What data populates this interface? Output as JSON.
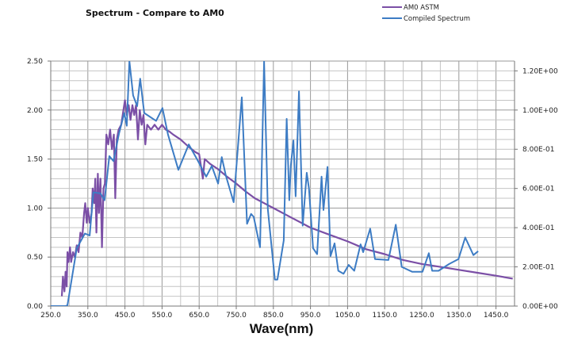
{
  "chart_data": {
    "type": "line",
    "title": "Spectrum - Compare to AM0",
    "xlabel": "Wave(nm)",
    "ylabel": "",
    "xlim": [
      250,
      1500
    ],
    "ylim_left": [
      0,
      2.5
    ],
    "ylim_right": [
      0,
      1.25
    ],
    "x_ticks": [
      "250.0",
      "350.0",
      "450.0",
      "550.0",
      "650.0",
      "750.0",
      "850.0",
      "950.0",
      "1050.0",
      "1150.0",
      "1250.0",
      "1350.0",
      "1450.0"
    ],
    "y_left_ticks": [
      "0.00",
      "0.50",
      "1.00",
      "1.50",
      "2.00",
      "2.50"
    ],
    "y_right_ticks": [
      "0.00E+00",
      "2.00E-01",
      "4.00E-01",
      "6.00E-01",
      "8.00E-01",
      "1.00E+00",
      "1.20E+00"
    ],
    "grid": true,
    "legend_placement": "top-right",
    "series": [
      {
        "name": "AM0 ASTM",
        "axis": "left",
        "color": "#7b4fa6",
        "points": [
          [
            280,
            0.1
          ],
          [
            283,
            0.3
          ],
          [
            287,
            0.15
          ],
          [
            290,
            0.35
          ],
          [
            293,
            0.2
          ],
          [
            295,
            0.55
          ],
          [
            298,
            0.45
          ],
          [
            302,
            0.6
          ],
          [
            305,
            0.45
          ],
          [
            310,
            0.55
          ],
          [
            315,
            0.5
          ],
          [
            320,
            0.62
          ],
          [
            325,
            0.55
          ],
          [
            330,
            0.75
          ],
          [
            335,
            0.7
          ],
          [
            340,
            0.95
          ],
          [
            343,
            1.05
          ],
          [
            347,
            0.85
          ],
          [
            350,
            1.0
          ],
          [
            355,
            0.85
          ],
          [
            360,
            0.95
          ],
          [
            363,
            1.2
          ],
          [
            367,
            1.05
          ],
          [
            370,
            1.3
          ],
          [
            373,
            0.75
          ],
          [
            377,
            1.35
          ],
          [
            380,
            0.95
          ],
          [
            384,
            1.3
          ],
          [
            388,
            0.6
          ],
          [
            392,
            1.2
          ],
          [
            396,
            1.25
          ],
          [
            400,
            1.75
          ],
          [
            405,
            1.65
          ],
          [
            410,
            1.8
          ],
          [
            415,
            1.6
          ],
          [
            420,
            1.75
          ],
          [
            424,
            1.1
          ],
          [
            428,
            1.7
          ],
          [
            433,
            1.8
          ],
          [
            440,
            1.85
          ],
          [
            446,
            2.0
          ],
          [
            450,
            2.1
          ],
          [
            455,
            1.95
          ],
          [
            460,
            2.05
          ],
          [
            465,
            1.9
          ],
          [
            470,
            2.05
          ],
          [
            475,
            1.95
          ],
          [
            480,
            2.05
          ],
          [
            485,
            1.7
          ],
          [
            490,
            2.0
          ],
          [
            495,
            1.85
          ],
          [
            500,
            1.95
          ],
          [
            505,
            1.65
          ],
          [
            510,
            1.85
          ],
          [
            520,
            1.8
          ],
          [
            530,
            1.85
          ],
          [
            540,
            1.8
          ],
          [
            550,
            1.85
          ],
          [
            560,
            1.8
          ],
          [
            570,
            1.78
          ],
          [
            580,
            1.75
          ],
          [
            600,
            1.7
          ],
          [
            620,
            1.63
          ],
          [
            640,
            1.57
          ],
          [
            650,
            1.55
          ],
          [
            660,
            1.3
          ],
          [
            665,
            1.5
          ],
          [
            680,
            1.45
          ],
          [
            700,
            1.4
          ],
          [
            725,
            1.32
          ],
          [
            750,
            1.25
          ],
          [
            775,
            1.17
          ],
          [
            800,
            1.1
          ],
          [
            825,
            1.05
          ],
          [
            850,
            1.0
          ],
          [
            900,
            0.9
          ],
          [
            950,
            0.8
          ],
          [
            1000,
            0.73
          ],
          [
            1050,
            0.66
          ],
          [
            1100,
            0.58
          ],
          [
            1150,
            0.53
          ],
          [
            1200,
            0.47
          ],
          [
            1250,
            0.43
          ],
          [
            1300,
            0.4
          ],
          [
            1350,
            0.37
          ],
          [
            1400,
            0.34
          ],
          [
            1450,
            0.31
          ],
          [
            1495,
            0.28
          ]
        ]
      },
      {
        "name": "Compiled Spectrum",
        "axis": "right",
        "color": "#3d7cc4",
        "points": [
          [
            250,
            0
          ],
          [
            290,
            0
          ],
          [
            295,
            0.005
          ],
          [
            320,
            0.295
          ],
          [
            342,
            0.37
          ],
          [
            355,
            0.36
          ],
          [
            365,
            0.58
          ],
          [
            384,
            0.575
          ],
          [
            395,
            0.54
          ],
          [
            408,
            0.765
          ],
          [
            419,
            0.74
          ],
          [
            434,
            0.88
          ],
          [
            448,
            0.985
          ],
          [
            455,
            0.92
          ],
          [
            462,
            1.25
          ],
          [
            472,
            1.075
          ],
          [
            483,
            1.02
          ],
          [
            491,
            1.16
          ],
          [
            502,
            0.985
          ],
          [
            534,
            0.945
          ],
          [
            551,
            1.01
          ],
          [
            566,
            0.875
          ],
          [
            594,
            0.695
          ],
          [
            622,
            0.825
          ],
          [
            647,
            0.74
          ],
          [
            669,
            0.66
          ],
          [
            684,
            0.715
          ],
          [
            701,
            0.625
          ],
          [
            711,
            0.76
          ],
          [
            722,
            0.665
          ],
          [
            743,
            0.53
          ],
          [
            765,
            1.065
          ],
          [
            779,
            0.42
          ],
          [
            790,
            0.47
          ],
          [
            797,
            0.455
          ],
          [
            814,
            0.3
          ],
          [
            825,
            1.25
          ],
          [
            835,
            0.495
          ],
          [
            854,
            0.135
          ],
          [
            861,
            0.135
          ],
          [
            878,
            0.335
          ],
          [
            886,
            0.955
          ],
          [
            893,
            0.54
          ],
          [
            897,
            0.715
          ],
          [
            904,
            0.845
          ],
          [
            910,
            0.56
          ],
          [
            919,
            1.095
          ],
          [
            929,
            0.41
          ],
          [
            940,
            0.68
          ],
          [
            946,
            0.6
          ],
          [
            957,
            0.295
          ],
          [
            968,
            0.265
          ],
          [
            980,
            0.66
          ],
          [
            985,
            0.49
          ],
          [
            996,
            0.71
          ],
          [
            1004,
            0.255
          ],
          [
            1015,
            0.32
          ],
          [
            1025,
            0.18
          ],
          [
            1039,
            0.165
          ],
          [
            1053,
            0.21
          ],
          [
            1068,
            0.18
          ],
          [
            1085,
            0.315
          ],
          [
            1092,
            0.275
          ],
          [
            1111,
            0.395
          ],
          [
            1124,
            0.24
          ],
          [
            1160,
            0.235
          ],
          [
            1180,
            0.415
          ],
          [
            1196,
            0.2
          ],
          [
            1224,
            0.175
          ],
          [
            1252,
            0.175
          ],
          [
            1269,
            0.27
          ],
          [
            1278,
            0.18
          ],
          [
            1295,
            0.18
          ],
          [
            1324,
            0.215
          ],
          [
            1349,
            0.24
          ],
          [
            1367,
            0.35
          ],
          [
            1389,
            0.26
          ],
          [
            1402,
            0.28
          ]
        ]
      }
    ]
  }
}
